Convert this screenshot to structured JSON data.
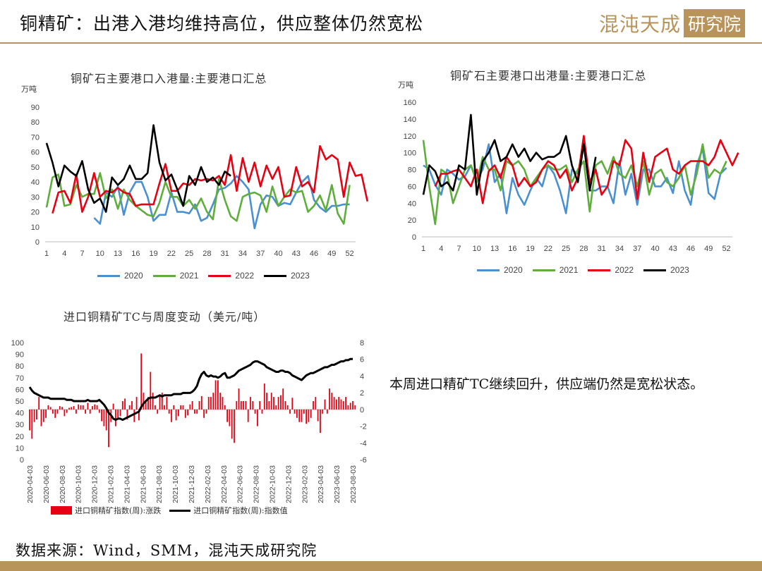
{
  "header": {
    "title": "铜精矿：出港入港均维持高位，供应整体仍然宽松",
    "logo_text": "混沌天成",
    "logo_box_text": "研究院"
  },
  "colors": {
    "c2020": "#4a90d0",
    "c2021": "#5fae3c",
    "c2022": "#e60012",
    "c2023": "#000000",
    "accent": "#b8945a"
  },
  "comment": "本周进口精矿TC继续回升，供应端仍然是宽松状态。",
  "source": "数据来源：Wind，SMM，混沌天成研究院",
  "chart_data": [
    {
      "type": "line",
      "title": "铜矿石主要港口入港量:主要港口汇总",
      "unit": "万吨",
      "ylim": [
        0,
        90
      ],
      "yticks": [
        "0",
        "10",
        "20",
        "30",
        "40",
        "50",
        "60",
        "70",
        "80",
        "90"
      ],
      "xticks": [
        "1",
        "4",
        "7",
        "10",
        "13",
        "16",
        "19",
        "22",
        "25",
        "28",
        "31",
        "34",
        "37",
        "40",
        "43",
        "46",
        "49",
        "52"
      ],
      "series": [
        {
          "name": "2020",
          "color": "#4a90d0",
          "start": 9,
          "values": [
            16,
            12,
            33,
            30,
            37,
            18,
            33,
            40,
            40,
            30,
            14,
            18,
            18,
            33,
            20,
            20,
            19,
            25,
            14,
            16,
            25,
            35,
            36,
            39,
            44,
            40,
            35,
            9,
            25,
            31,
            30,
            24,
            26,
            25,
            33,
            40,
            44,
            28,
            23,
            20,
            24,
            24,
            25,
            25
          ]
        },
        {
          "name": "2021",
          "color": "#5fae3c",
          "start": 1,
          "values": [
            23,
            43,
            45,
            24,
            25,
            38,
            30,
            32,
            32,
            46,
            29,
            35,
            22,
            35,
            28,
            24,
            21,
            18,
            17,
            26,
            40,
            30,
            30,
            24,
            28,
            22,
            29,
            20,
            15,
            42,
            28,
            17,
            14,
            30,
            32,
            33,
            31,
            20,
            37,
            24,
            30,
            35,
            33,
            34,
            20,
            24,
            31,
            21,
            38,
            19,
            12,
            38
          ]
        },
        {
          "name": "2022",
          "color": "#e60012",
          "start": 2,
          "values": [
            19,
            33,
            34,
            26,
            45,
            20,
            30,
            46,
            30,
            34,
            33,
            36,
            33,
            32,
            24,
            25,
            25,
            25,
            39,
            52,
            34,
            34,
            39,
            38,
            42,
            41,
            42,
            41,
            44,
            38,
            58,
            34,
            56,
            40,
            53,
            37,
            51,
            42,
            50,
            30,
            31,
            50,
            37,
            40,
            33,
            64,
            55,
            58,
            55,
            30,
            53,
            44,
            45,
            27
          ]
        },
        {
          "name": "2023",
          "color": "#000000",
          "start": 1,
          "values": [
            66,
            53,
            37,
            51,
            47,
            44,
            54,
            35,
            26,
            29,
            20,
            43,
            38,
            42,
            51,
            42,
            42,
            46,
            78,
            53,
            41,
            45,
            35,
            24,
            44,
            38,
            50,
            40,
            43,
            38,
            47,
            44
          ]
        }
      ]
    },
    {
      "type": "line",
      "title": "铜矿石主要港口出港量:主要港口汇总",
      "unit": "万吨",
      "ylim": [
        0,
        160
      ],
      "yticks": [
        "0",
        "20",
        "40",
        "60",
        "80",
        "100",
        "120",
        "140",
        "160"
      ],
      "xticks": [
        "1",
        "4",
        "7",
        "10",
        "13",
        "16",
        "19",
        "22",
        "25",
        "28",
        "31",
        "34",
        "37",
        "40",
        "43",
        "46",
        "49",
        "52"
      ],
      "series": [
        {
          "name": "2020",
          "color": "#4a90d0",
          "start": 1,
          "values": [
            85,
            80,
            62,
            50,
            80,
            75,
            68,
            72,
            85,
            68,
            80,
            110,
            65,
            75,
            28,
            70,
            50,
            38,
            55,
            70,
            60,
            85,
            75,
            55,
            28,
            80,
            75,
            110,
            55,
            55,
            60,
            60,
            40,
            90,
            50,
            75,
            38,
            80,
            80,
            60,
            60,
            70,
            52,
            90,
            55,
            38,
            85,
            105,
            52,
            45,
            75,
            82
          ]
        },
        {
          "name": "2021",
          "color": "#5fae3c",
          "start": 1,
          "values": [
            115,
            60,
            15,
            80,
            75,
            40,
            60,
            80,
            85,
            65,
            95,
            80,
            80,
            55,
            90,
            85,
            90,
            80,
            60,
            70,
            80,
            85,
            80,
            80,
            85,
            65,
            80,
            90,
            30,
            85,
            90,
            75,
            95,
            75,
            70,
            85,
            60,
            90,
            50,
            75,
            80,
            65,
            60,
            70,
            85,
            50,
            75,
            110,
            70,
            80,
            75,
            90
          ]
        },
        {
          "name": "2022",
          "color": "#e60012",
          "start": 3,
          "values": [
            60,
            75,
            75,
            78,
            80,
            70,
            60,
            80,
            40,
            78,
            85,
            70,
            95,
            85,
            60,
            70,
            60,
            65,
            80,
            90,
            85,
            70,
            80,
            55,
            70,
            120,
            65,
            80,
            50,
            60,
            90,
            85,
            115,
            105,
            45,
            100,
            65,
            95,
            100,
            105,
            80,
            75,
            85,
            90,
            90,
            90,
            85,
            95,
            115,
            100,
            85,
            100
          ]
        },
        {
          "name": "2023",
          "color": "#000000",
          "start": 1,
          "values": [
            50,
            85,
            78,
            60,
            65,
            55,
            85,
            80,
            145,
            50,
            90,
            100,
            115,
            90,
            95,
            110,
            95,
            105,
            90,
            100,
            92,
            95,
            95,
            100,
            120,
            85,
            65,
            110,
            55,
            95
          ]
        }
      ]
    },
    {
      "type": "bar+line",
      "title": "进口铜精矿TC与周度变动（美元/吨）",
      "y_left_lim": [
        0,
        100
      ],
      "y_left_ticks": [
        "0",
        "10",
        "20",
        "30",
        "40",
        "50",
        "60",
        "70",
        "80",
        "90",
        "100"
      ],
      "y_right_lim": [
        -6,
        8
      ],
      "y_right_ticks": [
        "-6",
        "-4",
        "-2",
        "0",
        "2",
        "4",
        "6",
        "8"
      ],
      "xticks": [
        "2020-04-03",
        "2020-06-03",
        "2020-08-03",
        "2020-10-03",
        "2020-12-03",
        "2021-02-03",
        "2021-04-03",
        "2021-06-03",
        "2021-08-03",
        "2021-10-03",
        "2021-12-03",
        "2022-02-03",
        "2022-04-03",
        "2022-06-03",
        "2022-08-03",
        "2022-10-03",
        "2022-12-03",
        "2023-02-03",
        "2023-04-03",
        "2023-06-03",
        "2023-08-03"
      ],
      "series": [
        {
          "name": "进口铜精矿指数(周):涨跌",
          "color": "#e60012",
          "axis": "right",
          "values": [
            -2.5,
            -3.5,
            -1.5,
            -1.2,
            1.5,
            -2,
            -1.5,
            -1,
            0.5,
            0.3,
            -0.5,
            -1,
            -0.5,
            0.4,
            0.3,
            -0.8,
            -0.4,
            0.2,
            0.3,
            0.4,
            -0.5,
            0.6,
            0.5,
            0.5,
            -0.5,
            0.8,
            -0.5,
            0.4,
            0.6,
            0.5,
            -0.4,
            -1.4,
            -2,
            -2.5,
            -4.5,
            -1.5,
            0.7,
            -2,
            -1,
            -0.8,
            1,
            1.3,
            -1.2,
            0.5,
            1,
            -1.5,
            1.5,
            -1.3,
            6.7,
            2,
            1,
            1.5,
            4.5,
            2,
            0.5,
            -0.5,
            1.6,
            2,
            0.5,
            1.5,
            -0.5,
            -1.5,
            0.5,
            -1.3,
            -0.8,
            0.5,
            0.5,
            -1,
            -0.7,
            0.6,
            1,
            -0.5,
            -0.5,
            1,
            1.6,
            -1,
            -0.5,
            1.5,
            1.5,
            2,
            3.5,
            3.5,
            2,
            1.5,
            0.5,
            -1.5,
            -2,
            -3.5,
            -4,
            1,
            2.5,
            1,
            1,
            1,
            -1.5,
            1.5,
            1,
            -0.5,
            -2,
            1,
            -0.5,
            3.1,
            2,
            1,
            2,
            1.5,
            0.5,
            1.5,
            1.7,
            2.5,
            1,
            0.5,
            -0.5,
            1.4,
            -0.5,
            -1,
            -1.5,
            -1.5,
            -0.5,
            -1.7,
            -1.5,
            -1,
            1,
            1.5,
            -1.4,
            -2.8,
            -0.5,
            1.2,
            -0.5,
            2.5,
            2,
            1.5,
            1.2,
            1.5,
            1.2,
            1,
            1.5,
            0.5,
            0.8,
            1,
            0.5
          ]
        },
        {
          "name": "进口铜精矿指数(周):指数值",
          "color": "#000000",
          "axis": "left",
          "values": [
            62,
            59,
            57,
            56,
            55,
            54,
            53,
            53,
            53,
            52,
            52,
            52,
            52,
            52,
            52,
            52,
            51,
            51,
            51,
            50,
            50,
            50,
            50,
            50,
            50,
            51,
            50,
            50,
            50,
            50,
            51,
            49,
            47,
            44,
            40,
            38,
            35,
            34,
            35,
            35,
            34,
            35,
            36,
            37,
            38,
            39,
            40,
            41,
            45,
            48,
            50,
            52,
            53,
            53,
            53,
            54,
            55,
            54,
            55,
            55,
            55,
            55,
            56,
            56,
            56,
            56,
            57,
            57,
            57,
            57,
            58,
            60,
            63,
            69,
            73,
            75,
            72,
            71,
            72,
            71,
            71,
            70,
            71,
            73,
            74,
            70,
            70,
            71,
            72,
            74,
            76,
            77,
            78,
            79,
            80,
            81,
            83,
            84,
            84,
            83,
            82,
            81,
            79,
            78,
            77,
            76,
            75,
            75,
            76,
            76,
            75,
            75,
            74,
            72,
            71,
            70,
            69,
            68,
            70,
            72,
            73,
            74,
            74,
            75,
            76,
            77,
            78,
            79,
            79,
            80,
            81,
            81,
            82,
            83,
            84,
            84,
            85,
            85,
            86,
            86
          ]
        }
      ]
    }
  ],
  "legend3": {
    "bar_label": "进口铜精矿指数(周):涨跌",
    "line_label": "进口铜精矿指数(周):指数值"
  }
}
